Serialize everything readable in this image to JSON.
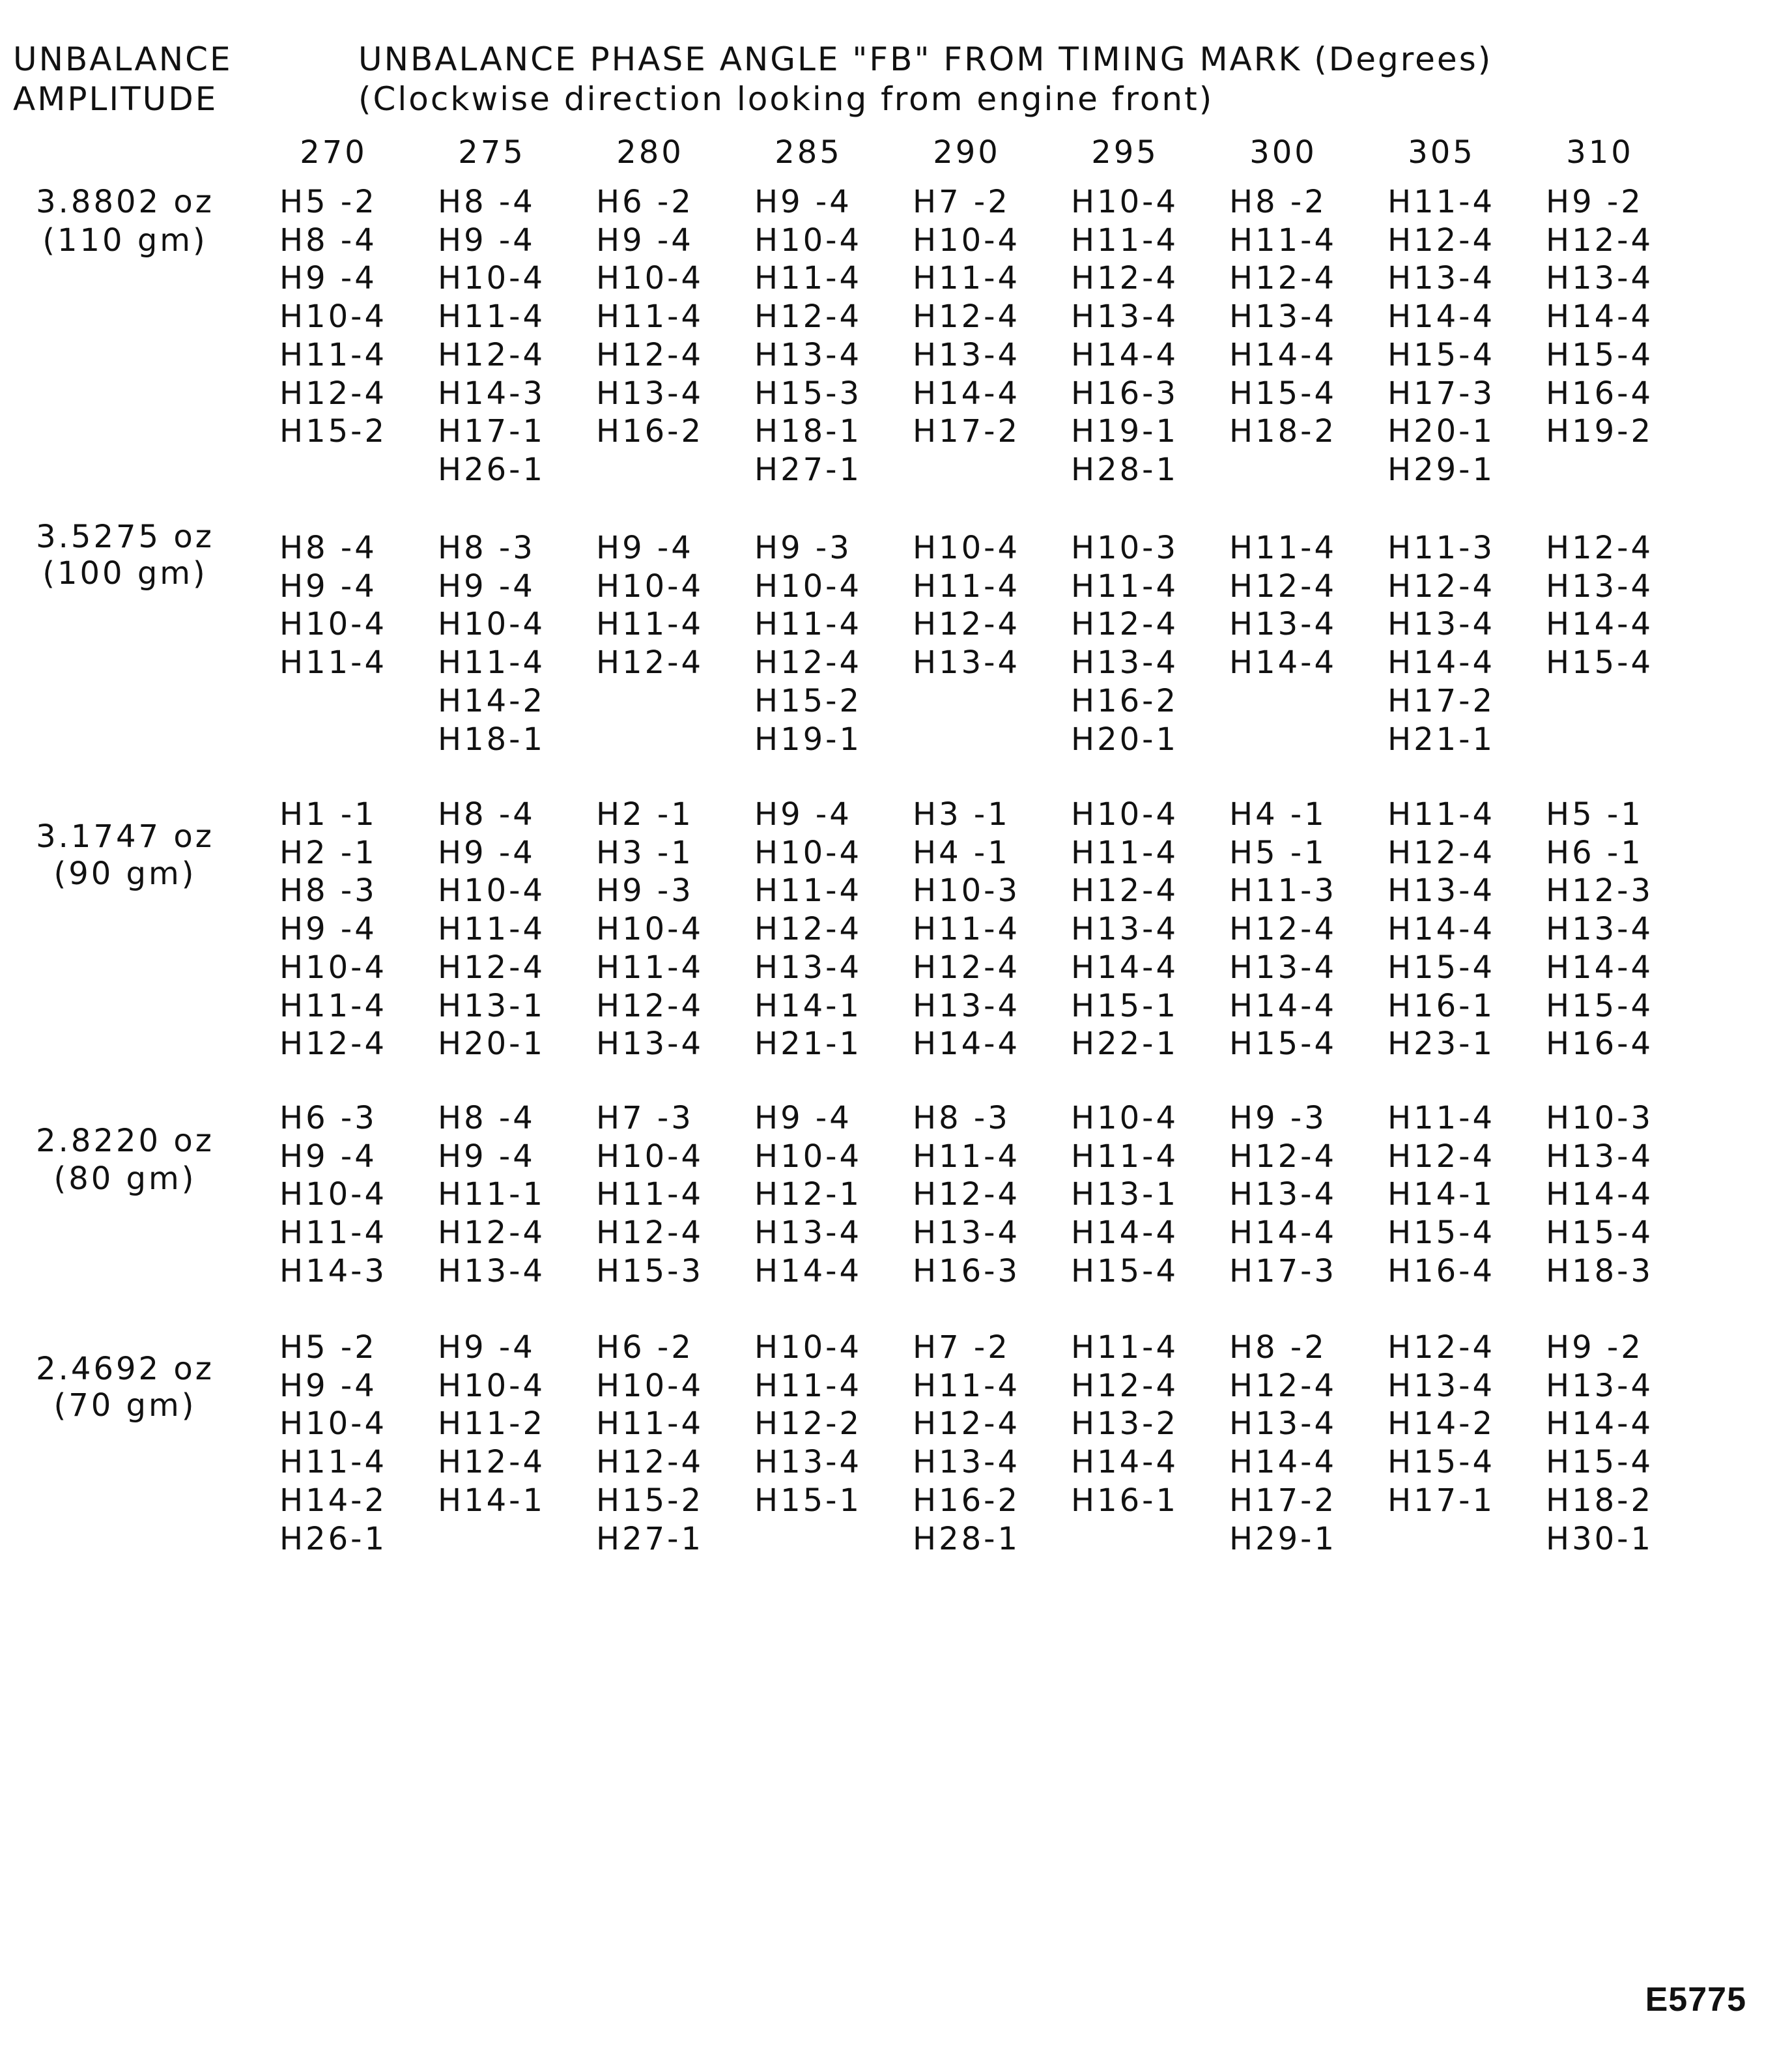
{
  "header": {
    "amplitude_label": [
      "UNBALANCE",
      "AMPLITUDE"
    ],
    "title": "UNBALANCE PHASE ANGLE \"FB\" FROM TIMING MARK (Degrees)",
    "subtitle": "(Clockwise direction looking from engine front)",
    "angles": [
      "270",
      "275",
      "280",
      "285",
      "290",
      "295",
      "300",
      "305",
      "310"
    ]
  },
  "groups": [
    {
      "amplitude": [
        "3.8802 oz",
        "(110 gm)"
      ],
      "cells": [
        [
          "H5 -2",
          "H8 -4",
          "H9 -4",
          "H10-4",
          "H11-4",
          "H12-4",
          "H15-2"
        ],
        [
          "H8 -4",
          "H9 -4",
          "H10-4",
          "H11-4",
          "H12-4",
          "H14-3",
          "H17-1",
          "H26-1"
        ],
        [
          "H6 -2",
          "H9 -4",
          "H10-4",
          "H11-4",
          "H12-4",
          "H13-4",
          "H16-2"
        ],
        [
          "H9 -4",
          "H10-4",
          "H11-4",
          "H12-4",
          "H13-4",
          "H15-3",
          "H18-1",
          "H27-1"
        ],
        [
          "H7 -2",
          "H10-4",
          "H11-4",
          "H12-4",
          "H13-4",
          "H14-4",
          "H17-2"
        ],
        [
          "H10-4",
          "H11-4",
          "H12-4",
          "H13-4",
          "H14-4",
          "H16-3",
          "H19-1",
          "H28-1"
        ],
        [
          "H8 -2",
          "H11-4",
          "H12-4",
          "H13-4",
          "H14-4",
          "H15-4",
          "H18-2"
        ],
        [
          "H11-4",
          "H12-4",
          "H13-4",
          "H14-4",
          "H15-4",
          "H17-3",
          "H20-1",
          "H29-1"
        ],
        [
          "H9 -2",
          "H12-4",
          "H13-4",
          "H14-4",
          "H15-4",
          "H16-4",
          "H19-2"
        ]
      ]
    },
    {
      "amplitude": [
        "3.5275 oz",
        "(100 gm)"
      ],
      "cells": [
        [
          "H8 -4",
          "H9 -4",
          "H10-4",
          "H11-4"
        ],
        [
          "H8 -3",
          "H9 -4",
          "H10-4",
          "H11-4",
          "H14-2",
          "H18-1"
        ],
        [
          "H9 -4",
          "H10-4",
          "H11-4",
          "H12-4"
        ],
        [
          "H9 -3",
          "H10-4",
          "H11-4",
          "H12-4",
          "H15-2",
          "H19-1"
        ],
        [
          "H10-4",
          "H11-4",
          "H12-4",
          "H13-4"
        ],
        [
          "H10-3",
          "H11-4",
          "H12-4",
          "H13-4",
          "H16-2",
          "H20-1"
        ],
        [
          "H11-4",
          "H12-4",
          "H13-4",
          "H14-4"
        ],
        [
          "H11-3",
          "H12-4",
          "H13-4",
          "H14-4",
          "H17-2",
          "H21-1"
        ],
        [
          "H12-4",
          "H13-4",
          "H14-4",
          "H15-4"
        ]
      ]
    },
    {
      "amplitude": [
        "3.1747 oz",
        "(90 gm)"
      ],
      "cells": [
        [
          "H1 -1",
          "H2 -1",
          "H8 -3",
          "H9 -4",
          "H10-4",
          "H11-4",
          "H12-4"
        ],
        [
          "H8 -4",
          "H9 -4",
          "H10-4",
          "H11-4",
          "H12-4",
          "H13-1",
          "H20-1"
        ],
        [
          "H2 -1",
          "H3 -1",
          "H9 -3",
          "H10-4",
          "H11-4",
          "H12-4",
          "H13-4"
        ],
        [
          "H9 -4",
          "H10-4",
          "H11-4",
          "H12-4",
          "H13-4",
          "H14-1",
          "H21-1"
        ],
        [
          "H3 -1",
          "H4 -1",
          "H10-3",
          "H11-4",
          "H12-4",
          "H13-4",
          "H14-4"
        ],
        [
          "H10-4",
          "H11-4",
          "H12-4",
          "H13-4",
          "H14-4",
          "H15-1",
          "H22-1"
        ],
        [
          "H4 -1",
          "H5 -1",
          "H11-3",
          "H12-4",
          "H13-4",
          "H14-4",
          "H15-4"
        ],
        [
          "H11-4",
          "H12-4",
          "H13-4",
          "H14-4",
          "H15-4",
          "H16-1",
          "H23-1"
        ],
        [
          "H5 -1",
          "H6 -1",
          "H12-3",
          "H13-4",
          "H14-4",
          "H15-4",
          "H16-4"
        ]
      ]
    },
    {
      "amplitude": [
        "2.8220 oz",
        "(80 gm)"
      ],
      "cells": [
        [
          "H6 -3",
          "H9 -4",
          "H10-4",
          "H11-4",
          "H14-3"
        ],
        [
          "H8 -4",
          "H9 -4",
          "H11-1",
          "H12-4",
          "H13-4"
        ],
        [
          "H7 -3",
          "H10-4",
          "H11-4",
          "H12-4",
          "H15-3"
        ],
        [
          "H9 -4",
          "H10-4",
          "H12-1",
          "H13-4",
          "H14-4"
        ],
        [
          "H8 -3",
          "H11-4",
          "H12-4",
          "H13-4",
          "H16-3"
        ],
        [
          "H10-4",
          "H11-4",
          "H13-1",
          "H14-4",
          "H15-4"
        ],
        [
          "H9 -3",
          "H12-4",
          "H13-4",
          "H14-4",
          "H17-3"
        ],
        [
          "H11-4",
          "H12-4",
          "H14-1",
          "H15-4",
          "H16-4"
        ],
        [
          "H10-3",
          "H13-4",
          "H14-4",
          "H15-4",
          "H18-3"
        ]
      ]
    },
    {
      "amplitude": [
        "2.4692 oz",
        "(70 gm)"
      ],
      "cells": [
        [
          "H5 -2",
          "H9 -4",
          "H10-4",
          "H11-4",
          "H14-2",
          "H26-1"
        ],
        [
          "H9 -4",
          "H10-4",
          "H11-2",
          "H12-4",
          "H14-1"
        ],
        [
          "H6 -2",
          "H10-4",
          "H11-4",
          "H12-4",
          "H15-2",
          "H27-1"
        ],
        [
          "H10-4",
          "H11-4",
          "H12-2",
          "H13-4",
          "H15-1"
        ],
        [
          "H7 -2",
          "H11-4",
          "H12-4",
          "H13-4",
          "H16-2",
          "H28-1"
        ],
        [
          "H11-4",
          "H12-4",
          "H13-2",
          "H14-4",
          "H16-1"
        ],
        [
          "H8 -2",
          "H12-4",
          "H13-4",
          "H14-4",
          "H17-2",
          "H29-1"
        ],
        [
          "H12-4",
          "H13-4",
          "H14-2",
          "H15-4",
          "H17-1"
        ],
        [
          "H9 -2",
          "H13-4",
          "H14-4",
          "H15-4",
          "H18-2",
          "H30-1"
        ]
      ]
    }
  ],
  "footer": {
    "code": "E5775"
  }
}
